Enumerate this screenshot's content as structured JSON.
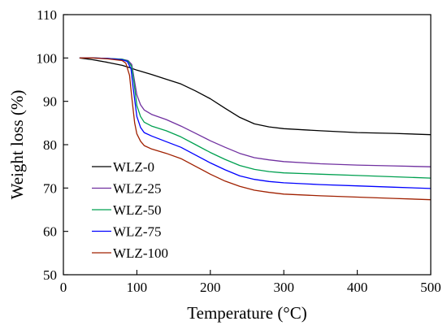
{
  "chart_data": {
    "type": "line",
    "title": "",
    "xlabel": "Temperature (°C)",
    "ylabel": "Weight loss (%)",
    "xlim": [
      0,
      500
    ],
    "ylim": [
      50,
      110
    ],
    "xticks": [
      0,
      100,
      200,
      300,
      400,
      500
    ],
    "yticks": [
      50,
      60,
      70,
      80,
      90,
      100,
      110
    ],
    "grid": false,
    "legend_position": "bottom-left",
    "series": [
      {
        "name": "WLZ-0",
        "color": "#000000",
        "x": [
          22,
          40,
          60,
          80,
          90,
          100,
          120,
          140,
          160,
          180,
          200,
          220,
          240,
          260,
          280,
          300,
          350,
          400,
          450,
          500
        ],
        "y": [
          100,
          99.6,
          99.0,
          98.3,
          97.8,
          97.2,
          96.2,
          95.1,
          94.0,
          92.4,
          90.6,
          88.4,
          86.3,
          84.8,
          84.1,
          83.7,
          83.2,
          82.8,
          82.6,
          82.3
        ]
      },
      {
        "name": "WLZ-25",
        "color": "#7030a0",
        "x": [
          22,
          40,
          60,
          80,
          88,
          93,
          96,
          100,
          105,
          110,
          120,
          140,
          160,
          180,
          200,
          220,
          240,
          260,
          280,
          300,
          350,
          400,
          450,
          500
        ],
        "y": [
          100,
          100,
          99.9,
          99.7,
          99.4,
          98.5,
          95.5,
          91.5,
          89.2,
          88.0,
          87.0,
          85.8,
          84.3,
          82.6,
          80.9,
          79.4,
          78.0,
          77.0,
          76.5,
          76.1,
          75.6,
          75.3,
          75.1,
          74.9
        ]
      },
      {
        "name": "WLZ-50",
        "color": "#00a050",
        "x": [
          22,
          40,
          60,
          80,
          88,
          93,
          96,
          100,
          105,
          110,
          120,
          140,
          160,
          180,
          200,
          220,
          240,
          260,
          280,
          300,
          350,
          400,
          450,
          500
        ],
        "y": [
          100,
          100,
          99.9,
          99.7,
          99.3,
          98.0,
          94.5,
          89.0,
          86.5,
          85.2,
          84.3,
          83.2,
          81.8,
          80.0,
          78.2,
          76.6,
          75.2,
          74.3,
          73.8,
          73.5,
          73.2,
          72.9,
          72.6,
          72.3
        ]
      },
      {
        "name": "WLZ-75",
        "color": "#0000ff",
        "x": [
          22,
          40,
          60,
          80,
          87,
          92,
          95,
          100,
          105,
          110,
          120,
          140,
          160,
          180,
          200,
          220,
          240,
          260,
          280,
          300,
          350,
          400,
          450,
          500
        ],
        "y": [
          100,
          100,
          99.9,
          99.6,
          99.2,
          97.5,
          93.0,
          86.5,
          84.0,
          82.8,
          82.0,
          80.7,
          79.4,
          77.6,
          75.8,
          74.2,
          72.8,
          72.0,
          71.5,
          71.2,
          70.8,
          70.5,
          70.2,
          69.9
        ]
      },
      {
        "name": "WLZ-100",
        "color": "#a02000",
        "x": [
          22,
          40,
          60,
          80,
          85,
          90,
          93,
          97,
          100,
          105,
          110,
          120,
          140,
          160,
          180,
          200,
          220,
          240,
          260,
          280,
          300,
          350,
          400,
          450,
          500
        ],
        "y": [
          100,
          100,
          99.8,
          99.4,
          98.8,
          96.0,
          91.0,
          85.0,
          82.5,
          80.8,
          79.8,
          79.0,
          78.0,
          76.8,
          75.0,
          73.2,
          71.6,
          70.4,
          69.5,
          69.0,
          68.6,
          68.2,
          67.9,
          67.6,
          67.3
        ]
      }
    ]
  }
}
